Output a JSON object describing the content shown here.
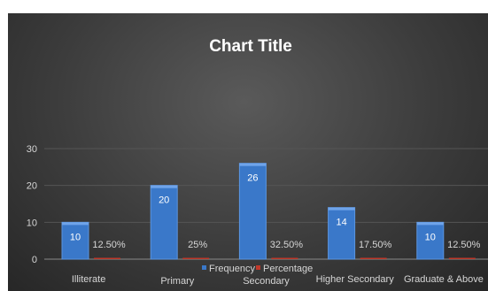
{
  "chart_data": {
    "type": "bar",
    "title": "Chart Title",
    "categories": [
      "Illiterate",
      "Primary",
      "Secondary",
      "Higher Secondary",
      "Graduate & Above"
    ],
    "series": [
      {
        "name": "Frequency",
        "values": [
          10,
          20,
          26,
          14,
          10
        ],
        "labels": [
          "10",
          "20",
          "26",
          "14",
          "10"
        ],
        "color": "#3a78c9"
      },
      {
        "name": "Percentage",
        "values": [
          0.125,
          0.25,
          0.325,
          0.175,
          0.125
        ],
        "labels": [
          "12.50%",
          "25%",
          "32.50%",
          "17.50%",
          "12.50%"
        ],
        "color": "#c0392b"
      }
    ],
    "yticks": [
      "0",
      "10",
      "20",
      "30"
    ],
    "ylim": [
      0,
      30
    ],
    "grid": true,
    "legend": "bottom"
  }
}
